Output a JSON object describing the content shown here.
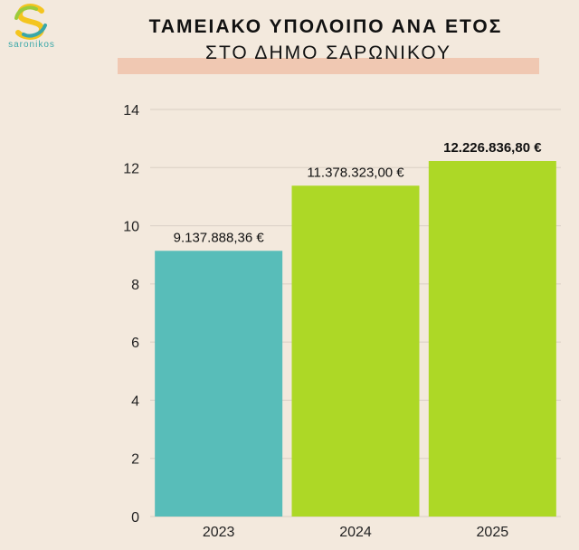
{
  "header": {
    "title": "ΤΑΜΕΙΑΚΟ ΥΠΟΛΟΙΠΟ ΑΝΑ ΕΤΟΣ",
    "subtitle": "ΣΤΟ ΔΗΜΟ ΣΑΡΩΝΙΚΟΥ"
  },
  "logo": {
    "text": "saronikos",
    "icon": "saronikos-s-logo"
  },
  "colors": {
    "background": "#f3e9dd",
    "band": "#f0c8b2",
    "bar_2023": "#58bdb9",
    "bar_other": "#add826",
    "gridline": "#d9cfc4"
  },
  "chart_data": {
    "type": "bar",
    "categories": [
      "2023",
      "2024",
      "2025"
    ],
    "values": [
      9.137888,
      11.378323,
      12.226837
    ],
    "data_labels": [
      "9.137.888,36  €",
      "11.378.323,00  €",
      "12.226.836,80  €"
    ],
    "bar_colors": [
      "#58bdb9",
      "#add826",
      "#add826"
    ],
    "y_ticks": [
      0,
      2,
      4,
      6,
      8,
      10,
      12,
      14
    ],
    "ylim": [
      0,
      14
    ],
    "title": "ΤΑΜΕΙΑΚΟ ΥΠΟΛΟΙΠΟ ΑΝΑ ΕΤΟΣ",
    "subtitle": "ΣΤΟ ΔΗΜΟ ΣΑΡΩΝΙΚΟΥ",
    "xlabel": "",
    "ylabel": "",
    "grid": true,
    "legend": "none"
  }
}
